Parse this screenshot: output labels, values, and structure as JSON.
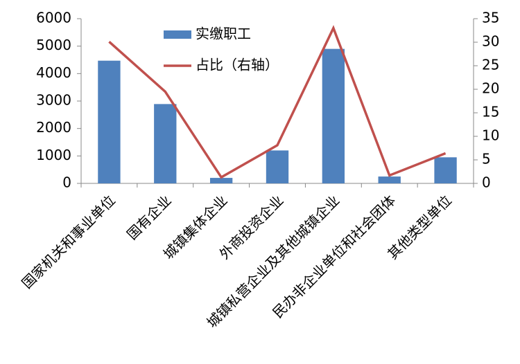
{
  "chart_data": {
    "type": "combo",
    "categories": [
      "国家机关和事业单位",
      "国有企业",
      "城镇集体企业",
      "外商投资企业",
      "城镇私营企业及其他城镇企业",
      "民办非企业单位和社会团体",
      "其他类型单位"
    ],
    "series": [
      {
        "name": "实缴职工",
        "type": "bar",
        "color": "#4f81bd",
        "values": [
          4470,
          2890,
          200,
          1200,
          4900,
          250,
          950
        ]
      },
      {
        "name": "占比（右轴）",
        "type": "line",
        "color": "#c0504d",
        "axis": "y2",
        "values": [
          30.1,
          19.5,
          1.3,
          8.1,
          33.0,
          1.7,
          6.4
        ]
      }
    ],
    "ylim": [
      0,
      6000
    ],
    "yticks": [
      0,
      1000,
      2000,
      3000,
      4000,
      5000,
      6000
    ],
    "y2lim": [
      0,
      35
    ],
    "y2ticks": [
      0,
      5,
      10,
      15,
      20,
      25,
      30,
      35
    ],
    "grid": false
  }
}
